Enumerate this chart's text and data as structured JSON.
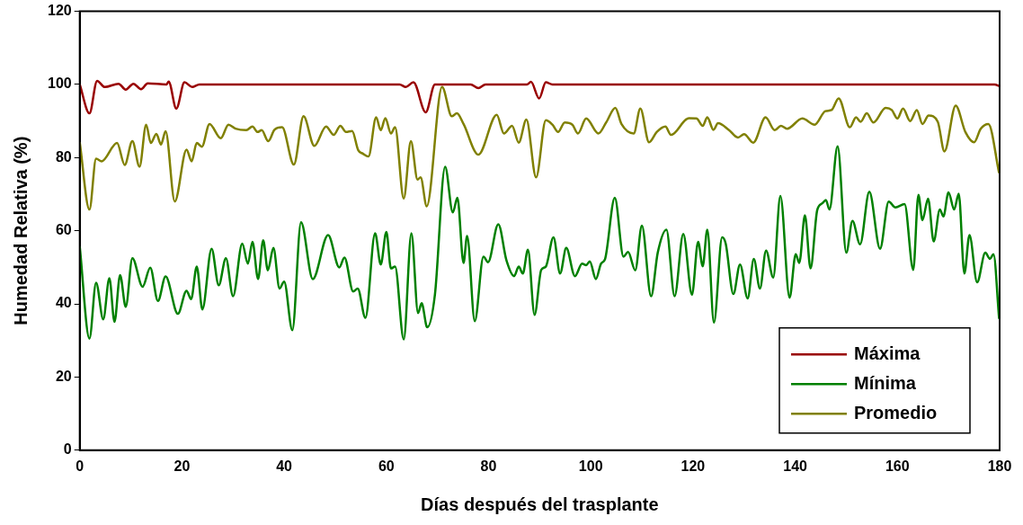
{
  "chart_data": {
    "type": "line",
    "xlabel": "Días después del trasplante",
    "ylabel": "Humedad Relativa (%)",
    "xlim": [
      0,
      180
    ],
    "xticks": [
      0,
      20,
      40,
      60,
      80,
      100,
      120,
      140,
      160,
      180
    ],
    "ylim": [
      0,
      120
    ],
    "yticks": [
      0,
      20,
      40,
      60,
      80,
      100,
      120
    ],
    "legend": "bottom right",
    "marker": "none",
    "line_style": "solid",
    "series": [
      {
        "name": "Máxima",
        "color": "#990000",
        "x": [
          0,
          1.9,
          3.4,
          4.9,
          7.6,
          9,
          10.5,
          12,
          13.3,
          17,
          17.4,
          18.9,
          20.5,
          22,
          23.4,
          62.6,
          63.8,
          65.3,
          67.7,
          69.5,
          76.5,
          78,
          79.4,
          87.5,
          88.3,
          89.9,
          91.2,
          92.5,
          179,
          180
        ],
        "values": [
          100,
          92.1,
          101,
          99.3,
          100.2,
          98.6,
          100.2,
          98.7,
          100.3,
          100,
          100.8,
          93.4,
          100.6,
          99.3,
          100,
          100,
          99.3,
          100.6,
          92.4,
          100,
          100,
          99,
          100,
          100,
          100.7,
          96.2,
          100.6,
          100,
          100,
          99.5
        ]
      },
      {
        "name": "Mínima",
        "color": "#008000",
        "x": [
          0,
          1.9,
          3.2,
          4.6,
          5.8,
          6.8,
          7.9,
          9,
          10.3,
          12.3,
          13.8,
          15.3,
          16.8,
          19.2,
          20.9,
          21.8,
          22.9,
          24,
          25.8,
          27.2,
          28.6,
          30,
          31.8,
          32.9,
          33.8,
          34.9,
          35.9,
          36.8,
          37.9,
          39.1,
          40,
          41.6,
          43.3,
          45.6,
          48.6,
          50.8,
          51.8,
          53.5,
          54.4,
          55.9,
          57.8,
          58.9,
          60,
          60.9,
          61.7,
          63.4,
          64.9,
          66.2,
          66.9,
          68,
          69.5,
          71.5,
          73,
          73.9,
          75.1,
          75.8,
          77.3,
          79,
          79.9,
          81.9,
          83.5,
          85,
          85.9,
          86.7,
          87.7,
          89,
          90.3,
          91.2,
          92.7,
          94,
          95.2,
          96.9,
          98.3,
          99.1,
          99.8,
          101,
          102,
          102.8,
          104.7,
          106.4,
          107.3,
          108.7,
          110,
          111.8,
          113.1,
          114.8,
          116.4,
          118.1,
          119.8,
          121,
          121.9,
          122.8,
          124.1,
          125.7,
          126.4,
          127.9,
          129.2,
          130.7,
          131.9,
          133.1,
          134.3,
          135.7,
          137.1,
          138.9,
          140.1,
          140.8,
          141.9,
          143,
          144.3,
          145.3,
          146,
          146.7,
          148.3,
          150,
          151.2,
          152.7,
          154.5,
          156.6,
          158.3,
          159.6,
          161.4,
          163.1,
          164.1,
          164.9,
          166,
          167.1,
          168.3,
          169,
          170,
          171.1,
          172,
          173.1,
          174.1,
          175.6,
          177.2,
          178.1,
          178.8,
          179.9
        ],
        "values": [
          55.7,
          30.5,
          45.8,
          35.8,
          47,
          35.1,
          47.9,
          39.2,
          52.5,
          44.7,
          49.9,
          40.8,
          47.5,
          37.3,
          43.6,
          41.3,
          50.2,
          38.5,
          55.1,
          45.1,
          52.5,
          42.1,
          56.5,
          51,
          57,
          46.8,
          57.4,
          49.2,
          55.3,
          44.2,
          46.1,
          32.8,
          62.3,
          46.8,
          58.8,
          50,
          52.7,
          43.4,
          44.2,
          36.2,
          59.3,
          50.8,
          59.7,
          49.7,
          50.2,
          30.3,
          59.3,
          37.5,
          40.2,
          33.6,
          42.5,
          77.5,
          65,
          69,
          51.2,
          58.6,
          35.3,
          52.9,
          51.4,
          61.8,
          51.9,
          47.6,
          50.2,
          48.3,
          54.8,
          37,
          49.3,
          50.2,
          58.2,
          48.3,
          55.3,
          47.6,
          51,
          50.6,
          51.6,
          46.8,
          51,
          52.3,
          69,
          52.9,
          54.2,
          49.2,
          61.4,
          42.1,
          54,
          60.3,
          42.1,
          59.1,
          42.5,
          57,
          50.3,
          60.3,
          34.9,
          58.2,
          56.5,
          42.7,
          50.8,
          41.5,
          52.3,
          44.2,
          54.6,
          47.2,
          69.5,
          41.7,
          53.6,
          51.2,
          64.2,
          49.7,
          65.6,
          67.5,
          68.4,
          65.8,
          83.1,
          54,
          62.7,
          56.3,
          70.7,
          55.1,
          68,
          66.4,
          67.3,
          49.3,
          69.8,
          62.9,
          68.8,
          57.1,
          65.8,
          63.9,
          70.5,
          65.8,
          70.1,
          48.3,
          58.8,
          45.9,
          54,
          52.3,
          53.6,
          35.9
        ]
      },
      {
        "name": "Promedio",
        "color": "#808000",
        "x": [
          0,
          1.9,
          3.2,
          4.3,
          7.3,
          8.8,
          10.3,
          11.7,
          13,
          13.9,
          15,
          15.9,
          16.8,
          18.6,
          20.9,
          21.9,
          22.9,
          23.9,
          25.4,
          27.6,
          29.1,
          30.5,
          32.6,
          33.8,
          34.8,
          35.6,
          36.9,
          38.1,
          39.6,
          41.9,
          43.8,
          45.9,
          48.2,
          49.7,
          51,
          52.1,
          53.3,
          54.5,
          55.4,
          56.5,
          58,
          58.9,
          59.8,
          60.9,
          61.7,
          63.4,
          64.8,
          66.1,
          66.7,
          67.9,
          70.9,
          72.8,
          73.8,
          75.1,
          78,
          81.6,
          83,
          84.6,
          85.9,
          87.4,
          89.3,
          91.2,
          92.5,
          93.6,
          94.9,
          96.4,
          97.5,
          99.1,
          101.5,
          103,
          104.8,
          106,
          108.4,
          109.7,
          111.4,
          112.9,
          114.6,
          115.7,
          119.2,
          120.7,
          121.9,
          122.8,
          124,
          124.9,
          127,
          128.8,
          130,
          131.8,
          134.2,
          136,
          137.2,
          138.4,
          141.4,
          143.8,
          145.9,
          147.1,
          148.5,
          150.7,
          151.9,
          152.8,
          154,
          155.3,
          157.7,
          158.9,
          160,
          161.1,
          162.5,
          163.8,
          164.9,
          166.1,
          167.9,
          169.2,
          171.4,
          173.3,
          175,
          176.3,
          177.8,
          179.9
        ],
        "values": [
          84.2,
          65.8,
          79.7,
          79,
          84,
          78,
          84.5,
          77.5,
          89,
          84,
          86.5,
          83.6,
          87.2,
          68,
          82.2,
          79,
          84,
          83,
          89.2,
          85.3,
          89,
          87.9,
          87.5,
          88.5,
          87,
          87.5,
          84.5,
          87.6,
          88.3,
          78.1,
          91.3,
          83.2,
          88.5,
          86.2,
          88.7,
          87,
          87.3,
          82,
          81.1,
          80.3,
          91,
          87.5,
          90.8,
          86.6,
          88.3,
          68.8,
          84.5,
          74,
          74.6,
          66.7,
          99.3,
          91.3,
          92.1,
          89.2,
          80.8,
          91.7,
          86.6,
          88.7,
          84.1,
          90.4,
          74.6,
          90.2,
          89,
          87,
          89.6,
          89,
          86.6,
          90.7,
          86.6,
          89.6,
          93.6,
          89.2,
          86.6,
          93.4,
          84.2,
          87,
          88.5,
          86.2,
          90.8,
          90.7,
          88.7,
          91,
          87.6,
          89.4,
          87.6,
          85.5,
          86.4,
          84.1,
          91,
          87.5,
          88.7,
          87.9,
          90.7,
          89,
          92.7,
          93,
          96.2,
          88.3,
          91,
          89.8,
          92.1,
          89.6,
          93.6,
          93,
          90.7,
          93.4,
          90,
          93,
          89.2,
          91.5,
          89.8,
          81.7,
          94.2,
          87,
          84.2,
          87.9,
          89.2,
          75.8
        ]
      }
    ]
  }
}
